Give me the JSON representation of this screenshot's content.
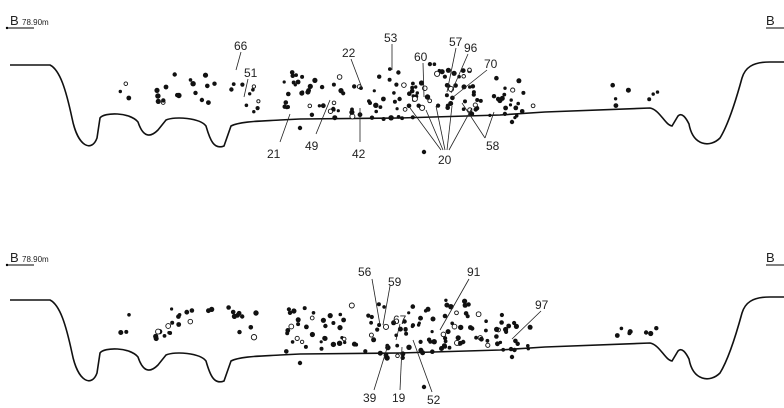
{
  "upper_section": {
    "left_marker": {
      "letter": "B",
      "elevation": "78.90m"
    },
    "right_marker": {
      "letter": "B"
    },
    "labels": [
      "66",
      "51",
      "22",
      "53",
      "60",
      "57",
      "96",
      "70",
      "21",
      "49",
      "42",
      "20",
      "58"
    ]
  },
  "lower_section": {
    "left_marker": {
      "letter": "B",
      "elevation": "78.90m"
    },
    "right_marker": {
      "letter": "B"
    },
    "labels": [
      "56",
      "59",
      "91",
      "67",
      "97",
      "39",
      "19",
      "52"
    ]
  }
}
